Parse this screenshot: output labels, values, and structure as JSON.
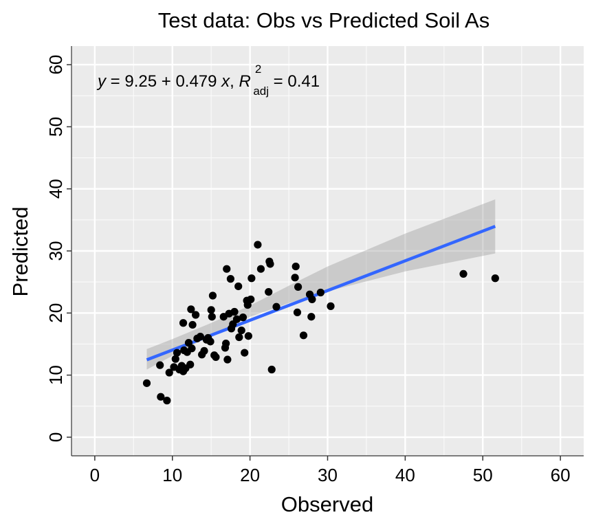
{
  "chart_data": {
    "type": "scatter",
    "title": "Test data: Obs vs Predicted Soil As",
    "xlabel": "Observed",
    "ylabel": "Predicted",
    "xlim": [
      -3,
      63
    ],
    "ylim": [
      -3,
      63
    ],
    "xticks": [
      0,
      10,
      20,
      30,
      40,
      50,
      60
    ],
    "yticks": [
      0,
      10,
      20,
      30,
      40,
      50,
      60
    ],
    "grid": true,
    "background": "#ebebeb",
    "point_color": "#000000",
    "fit_color": "#3366ff",
    "band_color": "#999999",
    "equation": {
      "y_label": "y",
      "intercept": "9.25",
      "slope": "0.479",
      "x_label": "x",
      "r2_label": "R",
      "r2_sup": "2",
      "r2_sub": "adj",
      "r2_value": "0.41"
    },
    "fit": {
      "intercept": 9.25,
      "slope": 0.479,
      "x_range": [
        6.7,
        51.6
      ]
    },
    "band": [
      {
        "x": 6.7,
        "lo": 10.9,
        "hi": 14.2
      },
      {
        "x": 10,
        "lo": 13.1,
        "hi": 15.8
      },
      {
        "x": 15,
        "lo": 16.4,
        "hi": 18.4
      },
      {
        "x": 20,
        "lo": 19.4,
        "hi": 21.2
      },
      {
        "x": 25,
        "lo": 21.6,
        "hi": 24.4
      },
      {
        "x": 30,
        "lo": 23.5,
        "hi": 27.5
      },
      {
        "x": 40,
        "lo": 26.7,
        "hi": 32.8
      },
      {
        "x": 51.6,
        "lo": 29.6,
        "hi": 38.3
      }
    ],
    "points": [
      {
        "x": 6.7,
        "y": 8.7
      },
      {
        "x": 8.5,
        "y": 6.5
      },
      {
        "x": 9.3,
        "y": 5.9
      },
      {
        "x": 8.4,
        "y": 11.6
      },
      {
        "x": 9.6,
        "y": 10.4
      },
      {
        "x": 10.2,
        "y": 11.3
      },
      {
        "x": 10.4,
        "y": 12.6
      },
      {
        "x": 10.6,
        "y": 13.6
      },
      {
        "x": 10.9,
        "y": 10.9
      },
      {
        "x": 11.2,
        "y": 11.5
      },
      {
        "x": 11.4,
        "y": 10.6
      },
      {
        "x": 11.5,
        "y": 14.0
      },
      {
        "x": 11.7,
        "y": 11.1
      },
      {
        "x": 11.9,
        "y": 13.7
      },
      {
        "x": 12.1,
        "y": 15.2
      },
      {
        "x": 12.3,
        "y": 11.7
      },
      {
        "x": 12.5,
        "y": 14.3
      },
      {
        "x": 11.4,
        "y": 18.4
      },
      {
        "x": 12.4,
        "y": 20.6
      },
      {
        "x": 12.6,
        "y": 18.1
      },
      {
        "x": 13.0,
        "y": 19.7
      },
      {
        "x": 13.2,
        "y": 15.9
      },
      {
        "x": 13.6,
        "y": 16.2
      },
      {
        "x": 13.8,
        "y": 13.3
      },
      {
        "x": 14.1,
        "y": 13.9
      },
      {
        "x": 14.4,
        "y": 15.7
      },
      {
        "x": 14.6,
        "y": 16.0
      },
      {
        "x": 14.9,
        "y": 15.4
      },
      {
        "x": 15.0,
        "y": 20.5
      },
      {
        "x": 15.1,
        "y": 19.4
      },
      {
        "x": 15.2,
        "y": 22.8
      },
      {
        "x": 15.4,
        "y": 13.2
      },
      {
        "x": 15.6,
        "y": 12.9
      },
      {
        "x": 16.6,
        "y": 19.4
      },
      {
        "x": 16.8,
        "y": 14.4
      },
      {
        "x": 16.9,
        "y": 15.1
      },
      {
        "x": 17.0,
        "y": 27.1
      },
      {
        "x": 17.1,
        "y": 12.5
      },
      {
        "x": 17.3,
        "y": 19.9
      },
      {
        "x": 17.5,
        "y": 25.5
      },
      {
        "x": 17.6,
        "y": 17.5
      },
      {
        "x": 17.8,
        "y": 18.2
      },
      {
        "x": 18.0,
        "y": 20.2
      },
      {
        "x": 18.3,
        "y": 19.0
      },
      {
        "x": 18.5,
        "y": 24.3
      },
      {
        "x": 18.6,
        "y": 16.1
      },
      {
        "x": 18.9,
        "y": 17.2
      },
      {
        "x": 19.1,
        "y": 19.3
      },
      {
        "x": 19.3,
        "y": 13.6
      },
      {
        "x": 19.6,
        "y": 22.0
      },
      {
        "x": 19.8,
        "y": 16.3
      },
      {
        "x": 19.7,
        "y": 21.3
      },
      {
        "x": 20.1,
        "y": 22.2
      },
      {
        "x": 20.2,
        "y": 25.6
      },
      {
        "x": 21.0,
        "y": 31.0
      },
      {
        "x": 21.4,
        "y": 27.1
      },
      {
        "x": 22.4,
        "y": 23.4
      },
      {
        "x": 22.5,
        "y": 28.3
      },
      {
        "x": 22.6,
        "y": 27.9
      },
      {
        "x": 22.8,
        "y": 10.9
      },
      {
        "x": 23.4,
        "y": 21.0
      },
      {
        "x": 25.8,
        "y": 25.7
      },
      {
        "x": 25.9,
        "y": 27.5
      },
      {
        "x": 26.1,
        "y": 20.1
      },
      {
        "x": 26.2,
        "y": 24.2
      },
      {
        "x": 26.9,
        "y": 16.4
      },
      {
        "x": 27.7,
        "y": 23.0
      },
      {
        "x": 27.9,
        "y": 19.4
      },
      {
        "x": 28.0,
        "y": 22.2
      },
      {
        "x": 29.1,
        "y": 23.3
      },
      {
        "x": 30.4,
        "y": 21.1
      },
      {
        "x": 47.5,
        "y": 26.3
      },
      {
        "x": 51.6,
        "y": 25.6
      }
    ]
  }
}
